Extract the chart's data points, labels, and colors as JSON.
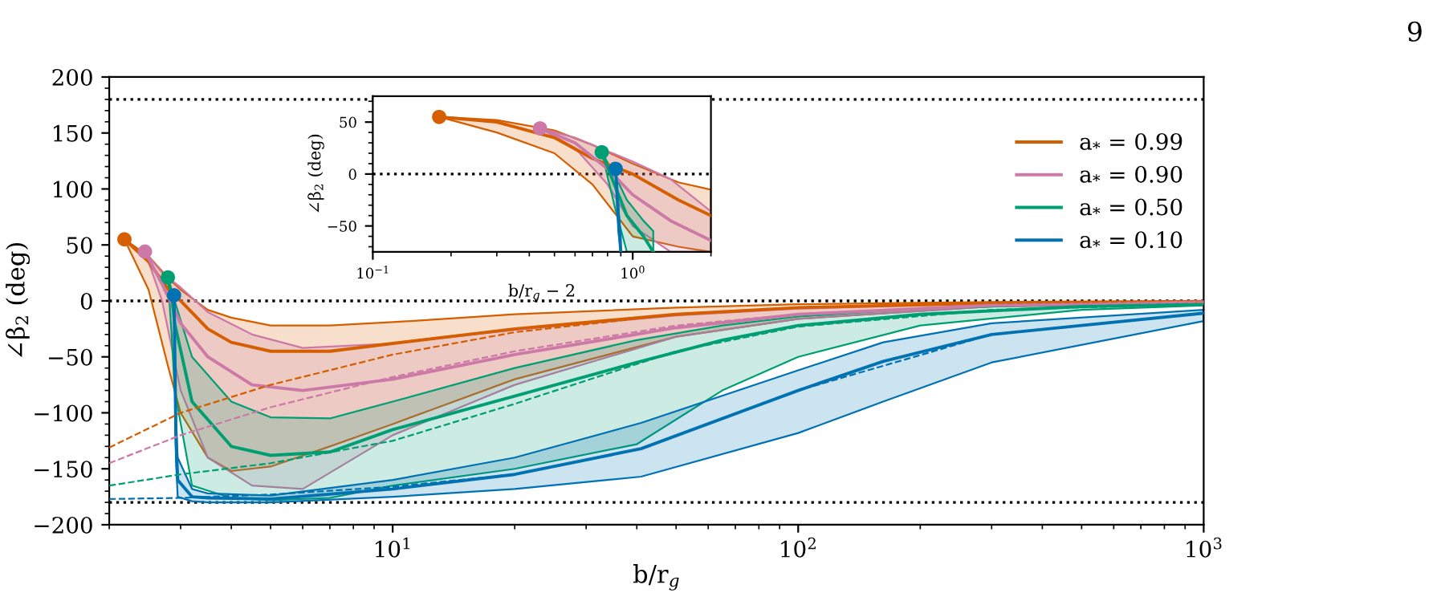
{
  "chart_data": [
    {
      "type": "line",
      "xlabel": "b/r$_{g}$",
      "ylabel": "∠β$_{2}$ (deg)",
      "annotations": [
        "9"
      ],
      "log": "x",
      "xlim": [
        2,
        1000
      ],
      "xticks": [
        {
          "value": 10,
          "label": "10$^{1}$"
        },
        {
          "value": 100,
          "label": "10$^{2}$"
        },
        {
          "value": 1000,
          "label": "10$^{3}$"
        }
      ],
      "ylim": [
        -200,
        200
      ],
      "yticks": [
        -200,
        -150,
        -100,
        -50,
        0,
        50,
        100,
        150,
        200
      ],
      "grid": false,
      "legend": "upper right",
      "line_style": "solid",
      "ref_lines": [
        {
          "axis": "y",
          "value": 180,
          "color": "#000000",
          "line_style": "dotted"
        },
        {
          "axis": "y",
          "value": 0,
          "color": "#000000",
          "line_style": "dotted"
        },
        {
          "axis": "y",
          "value": -180,
          "color": "#000000",
          "line_style": "dotted"
        }
      ],
      "series": [
        {
          "name": "a$_{*}$ = 0.99",
          "color": "#d55e00",
          "x": [
            2.18,
            2.5,
            2.8,
            3,
            3.5,
            4,
            5,
            7,
            10,
            20,
            50,
            100,
            300,
            1000
          ],
          "values": [
            55,
            35,
            10,
            0,
            -25,
            -37,
            -45,
            -45,
            -38,
            -25,
            -12,
            -6,
            -2,
            -1
          ],
          "upper": [
            55,
            40,
            20,
            10,
            -8,
            -15,
            -22,
            -22,
            -19,
            -12,
            -6,
            -3,
            -1,
            0
          ],
          "lower": [
            55,
            10,
            -60,
            -100,
            -140,
            -152,
            -148,
            -130,
            -110,
            -70,
            -32,
            -16,
            -5,
            -2
          ]
        },
        {
          "name": "a$_{*}$ = 0.90",
          "color": "#cc79a7",
          "x": [
            2.45,
            2.7,
            3,
            3.5,
            4.5,
            6,
            10,
            20,
            50,
            100,
            300,
            1000
          ],
          "values": [
            44,
            15,
            -20,
            -50,
            -75,
            -80,
            -70,
            -48,
            -24,
            -12,
            -4,
            -1
          ],
          "upper": [
            44,
            25,
            12,
            -10,
            -30,
            -42,
            -38,
            -26,
            -13,
            -7,
            -2,
            -1
          ],
          "lower": [
            44,
            0,
            -80,
            -140,
            -165,
            -168,
            -120,
            -75,
            -32,
            -16,
            -5,
            -2
          ]
        },
        {
          "name": "a$_{*}$ = 0.50",
          "color": "#009e73",
          "x": [
            2.79,
            2.85,
            2.9,
            3.2,
            4,
            5,
            7,
            10,
            20,
            40,
            65,
            100,
            200,
            500,
            1000
          ],
          "values": [
            21,
            5,
            -20,
            -90,
            -130,
            -138,
            -135,
            -115,
            -85,
            -55,
            -35,
            -22,
            -12,
            -5,
            -3
          ],
          "upper": [
            21,
            10,
            0,
            -50,
            -90,
            -104,
            -105,
            -90,
            -60,
            -35,
            -22,
            -14,
            -7,
            -3,
            -2
          ],
          "lower": [
            21,
            -30,
            -80,
            -165,
            -176,
            -178,
            -176,
            -165,
            -150,
            -128,
            -80,
            -50,
            -22,
            -8,
            -4
          ]
        },
        {
          "name": "a$_{*}$ = 0.10",
          "color": "#0072b2",
          "x": [
            2.89,
            2.92,
            2.95,
            3.2,
            3.5,
            5,
            10,
            20,
            41,
            100,
            162,
            300,
            1000
          ],
          "values": [
            5,
            -120,
            -160,
            -175,
            -176,
            -177,
            -168,
            -155,
            -132,
            -80,
            -54,
            -30,
            -11
          ],
          "upper": [
            5,
            -100,
            -140,
            -168,
            -172,
            -174,
            -160,
            -140,
            -109,
            -62,
            -37,
            -20,
            -8
          ],
          "lower": [
            5,
            -140,
            -175,
            -179,
            -180,
            -180,
            -175,
            -168,
            -157,
            -118,
            -90,
            -55,
            -18
          ]
        },
        {
          "type": "line",
          "line_style": "dashed",
          "color": "#d55e00",
          "x": [
            2,
            3,
            5,
            10,
            20,
            50,
            100,
            300,
            1000
          ],
          "values": [
            -131,
            -100,
            -75,
            -48,
            -28,
            -12,
            -6,
            -2,
            -1
          ]
        },
        {
          "type": "line",
          "line_style": "dashed",
          "color": "#cc79a7",
          "x": [
            2,
            3,
            5,
            10,
            20,
            50,
            100,
            300,
            1000
          ],
          "values": [
            -145,
            -120,
            -95,
            -68,
            -45,
            -22,
            -12,
            -4,
            -1
          ]
        },
        {
          "type": "line",
          "line_style": "dashed",
          "color": "#009e73",
          "x": [
            2,
            3,
            5,
            10,
            20,
            50,
            100,
            300,
            1000
          ],
          "values": [
            -165,
            -155,
            -145,
            -125,
            -92,
            -45,
            -23,
            -8,
            -3
          ]
        },
        {
          "type": "line",
          "line_style": "dashed",
          "color": "#0072b2",
          "x": [
            2,
            3,
            5,
            10,
            20,
            41,
            100,
            300,
            1000
          ],
          "values": [
            -177,
            -176,
            -173,
            -166,
            -155,
            -132,
            -80,
            -30,
            -11
          ]
        },
        {
          "type": "scatter",
          "marker": "circle",
          "color": "#d55e00",
          "x": [
            2.18
          ],
          "values": [
            55
          ]
        },
        {
          "type": "scatter",
          "marker": "circle",
          "color": "#cc79a7",
          "x": [
            2.45
          ],
          "values": [
            44
          ]
        },
        {
          "type": "scatter",
          "marker": "circle",
          "color": "#009e73",
          "x": [
            2.79
          ],
          "values": [
            21
          ]
        },
        {
          "type": "scatter",
          "marker": "circle",
          "color": "#0072b2",
          "x": [
            2.89
          ],
          "values": [
            5
          ]
        }
      ]
    },
    {
      "type": "line",
      "xlabel": "b/r$_{g}$ − 2",
      "ylabel": "∠β$_{2}$ (deg)",
      "log": "x",
      "xlim": [
        0.1,
        2
      ],
      "xticks": [
        {
          "value": 0.1,
          "label": "10$^{−1}$"
        },
        {
          "value": 1,
          "label": "10$^{0}$"
        }
      ],
      "ylim": [
        -75,
        75
      ],
      "yticks": [
        -50,
        0,
        50
      ],
      "grid": false,
      "line_style": "solid",
      "ref_lines": [
        {
          "axis": "y",
          "value": 0,
          "color": "#000000",
          "line_style": "dotted"
        }
      ],
      "series": [
        {
          "color": "#d55e00",
          "x": [
            0.18,
            0.3,
            0.5,
            0.7,
            1,
            1.5,
            2
          ],
          "values": [
            55,
            50,
            35,
            15,
            0,
            -25,
            -40
          ],
          "upper": [
            55,
            52,
            42,
            28,
            10,
            -8,
            -15
          ],
          "lower": [
            55,
            40,
            20,
            -10,
            -60,
            -70,
            -75
          ]
        },
        {
          "color": "#cc79a7",
          "x": [
            0.44,
            0.6,
            0.8,
            1,
            1.4,
            2
          ],
          "values": [
            44,
            30,
            5,
            -20,
            -45,
            -64
          ],
          "upper": [
            44,
            35,
            22,
            12,
            -5,
            -36
          ],
          "lower": [
            44,
            25,
            -10,
            -50,
            -75,
            -75
          ]
        },
        {
          "color": "#009e73",
          "x": [
            0.76,
            0.85,
            0.95,
            1.1,
            1.2
          ],
          "values": [
            21,
            -10,
            -40,
            -60,
            -75
          ],
          "upper": [
            21,
            0,
            -25,
            -45,
            -55
          ],
          "lower": [
            21,
            -30,
            -75,
            -75,
            -75
          ]
        },
        {
          "color": "#0072b2",
          "x": [
            0.86,
            0.88,
            0.9
          ],
          "values": [
            5,
            -40,
            -75
          ],
          "upper": [
            5,
            -30,
            -60
          ],
          "lower": [
            5,
            -55,
            -75
          ]
        },
        {
          "type": "scatter",
          "marker": "circle",
          "color": "#d55e00",
          "x": [
            0.18
          ],
          "values": [
            55
          ]
        },
        {
          "type": "scatter",
          "marker": "circle",
          "color": "#cc79a7",
          "x": [
            0.44
          ],
          "values": [
            44
          ]
        },
        {
          "type": "scatter",
          "marker": "circle",
          "color": "#009e73",
          "x": [
            0.76
          ],
          "values": [
            21
          ]
        },
        {
          "type": "scatter",
          "marker": "circle",
          "color": "#0072b2",
          "x": [
            0.86
          ],
          "values": [
            5
          ]
        }
      ]
    }
  ]
}
